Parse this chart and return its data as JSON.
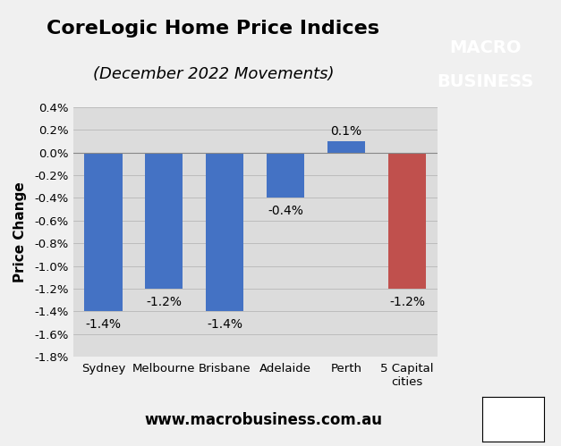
{
  "title": "CoreLogic Home Price Indices",
  "subtitle": "(December 2022 Movements)",
  "categories": [
    "Sydney",
    "Melbourne",
    "Brisbane",
    "Adelaide",
    "Perth",
    "5 Capital\ncities"
  ],
  "values": [
    -1.4,
    -1.2,
    -1.4,
    -0.4,
    0.1,
    -1.2
  ],
  "bar_colors": [
    "#4472C4",
    "#4472C4",
    "#4472C4",
    "#4472C4",
    "#4472C4",
    "#C0504D"
  ],
  "value_labels": [
    "-1.4%",
    "-1.2%",
    "-1.4%",
    "-0.4%",
    "0.1%",
    "-1.2%"
  ],
  "ylabel": "Price Change",
  "ylim": [
    -1.8,
    0.4
  ],
  "yticks": [
    -1.8,
    -1.6,
    -1.4,
    -1.2,
    -1.0,
    -0.8,
    -0.6,
    -0.4,
    -0.2,
    0.0,
    0.2,
    0.4
  ],
  "ytick_labels": [
    "-1.8%",
    "-1.6%",
    "-1.4%",
    "-1.2%",
    "-1.0%",
    "-0.8%",
    "-0.6%",
    "-0.4%",
    "-0.2%",
    "0.0%",
    "0.2%",
    "0.4%"
  ],
  "chart_bg_color": "#DCDCDC",
  "figure_bg_color": "#F0F0F0",
  "bottom_area_color": "#FFFFFF",
  "website": "www.macrobusiness.com.au",
  "macro_box_color": "#CC1111",
  "title_fontsize": 16,
  "subtitle_fontsize": 13,
  "label_fontsize": 10,
  "axis_label_fontsize": 11,
  "tick_fontsize": 9.5,
  "website_fontsize": 12
}
